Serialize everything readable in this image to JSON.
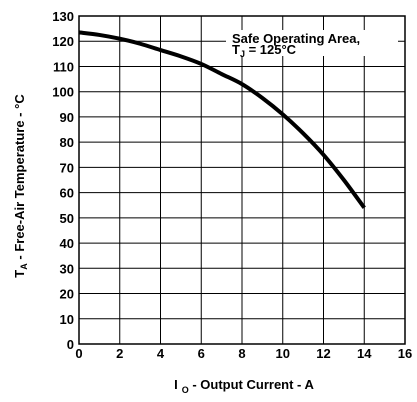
{
  "chart_data": {
    "type": "line",
    "title": "",
    "xlabel": {
      "prefix": "I",
      "subscript": "O",
      "suffix": " - Output Current -  A"
    },
    "ylabel": {
      "prefix": "T",
      "subscript": "A",
      "suffix": " - Free-Air Temperature - °C"
    },
    "xlim": [
      0,
      16
    ],
    "ylim": [
      0,
      130
    ],
    "x_ticks": [
      "0",
      "2",
      "4",
      "6",
      "8",
      "10",
      "12",
      "14",
      "16"
    ],
    "y_ticks": [
      "0",
      "10",
      "20",
      "30",
      "40",
      "50",
      "60",
      "70",
      "80",
      "90",
      "100",
      "110",
      "120",
      "130"
    ],
    "grid": true,
    "annotation": {
      "line1": "Safe Operating Area,",
      "line2_prefix": "T",
      "line2_subscript": "J",
      "line2_suffix": " = 125°C"
    },
    "series": [
      {
        "x": [
          0,
          1,
          2,
          3,
          4,
          5,
          6,
          7,
          8,
          9,
          10,
          11,
          12,
          13,
          14
        ],
        "y": [
          123.5,
          122.5,
          121,
          119,
          116.5,
          114,
          111,
          107,
          103,
          97.5,
          91,
          83.5,
          75,
          65,
          54
        ]
      }
    ],
    "line_color": "#000000"
  }
}
